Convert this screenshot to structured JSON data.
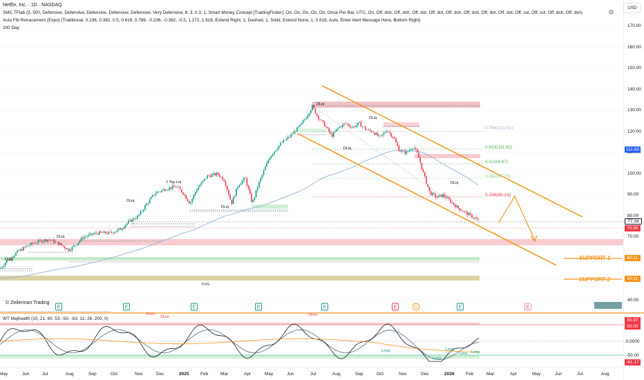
{
  "header": {
    "symbol_line": "Netflix, Inc. · 1D · NASDAQ",
    "indicator_1": "SMC TFlab (5, 500, Defensive, Defensive, Defensive, Defensive, Defensive, Very Defensive, 8, 3, 0.3, 1, Smart Money Concept [TradingFinder], On, On, On, On, On, Once Per Bar, UTC, On, Off, dsh, Off, dsh, Off, dot, Off, dot, Off, dsh, Off, dsh, Off, dot, Off, dot, Off, sol, Off, sol, Off, dsh, Off, dsh)",
    "indicator_2": "Auto Fib Retracement (Expo) (Traditional, 0.236, 0.382, 0.5, 0.618, 0.786, -0.236, -0.382, -0.5, 1.272, 1.618, Extend Right, 1, Dashed, 1, Solid, Extend None, 1, 0.618, Auto, Enter Alert Message Here, Bottom Right)",
    "indicator_3": "200 Day",
    "currency_button": "USD"
  },
  "price_axis": {
    "ticks": [
      "170.00",
      "160.00",
      "150.00",
      "140.00",
      "130.00",
      "120.00",
      "110.00",
      "100.00",
      "90.00",
      "80.00",
      "70.00",
      "60.00",
      "50.00",
      "40.00"
    ],
    "labels": [
      {
        "text": "111.83",
        "color": "#2962ff"
      },
      {
        "text": "77.34",
        "color": "#131722"
      },
      {
        "text": "75.86",
        "color": "#f23645"
      },
      {
        "text": "60.11",
        "color": "#f7931a"
      },
      {
        "text": "50.11",
        "color": "#f7931a"
      }
    ]
  },
  "fib_levels": [
    {
      "label": "0.786(121.51)",
      "color": "#9db2c9"
    },
    {
      "label": "0.618(111.62)",
      "color": "#4caf50"
    },
    {
      "label": "0.5(104.67)",
      "color": "#4caf50"
    },
    {
      "label": "0.382(97.73)",
      "color": "#81c784"
    },
    {
      "label": "0.236(89.13)",
      "color": "#f23645"
    }
  ],
  "chart_annotations": {
    "support_1": "SUPPORT 1",
    "support_2": "SUPPORT 2",
    "fvg": "FVG",
    "two_top_liq": "2 Top Liq",
    "dliq": "DLiq",
    "copyright": "© Zeilerman Trading"
  },
  "oscillator": {
    "title": "WT Majhealth (10, 21, 60, 53, -50, -63, 12, 26, 200, 0)",
    "axis_labels": [
      {
        "text": "55.97",
        "color": "#f23645"
      },
      {
        "text": "53.00",
        "color": "#f23645"
      },
      {
        "text": "0.0000",
        "color": "#2962ff"
      },
      {
        "text": "-50.00",
        "color": "#089981"
      },
      {
        "text": "-61.17",
        "color": "#f23645"
      }
    ],
    "short_label": "Short",
    "long_label": "Long"
  },
  "time_axis": [
    "May",
    "Jun",
    "Jul",
    "Aug",
    "Sep",
    "Oct",
    "Nov",
    "Dec",
    "2025",
    "Feb",
    "Mar",
    "Apr",
    "May",
    "Jun",
    "Jul",
    "Aug",
    "Sep",
    "Oct",
    "Nov",
    "Dec",
    "2026",
    "Feb",
    "Mar",
    "Apr",
    "May",
    "Jun",
    "Jul",
    "Aug"
  ],
  "colors": {
    "bull": "#089981",
    "bear": "#f23645",
    "channel": "#f7931a",
    "ma200": "#2962ff",
    "fvg": "#e3d8a8",
    "supply": "#f23645",
    "demand": "#4caf50"
  },
  "earnings_markers": [
    "E",
    "E",
    "E",
    "E",
    "E",
    "E",
    "D",
    "E",
    "E"
  ]
}
